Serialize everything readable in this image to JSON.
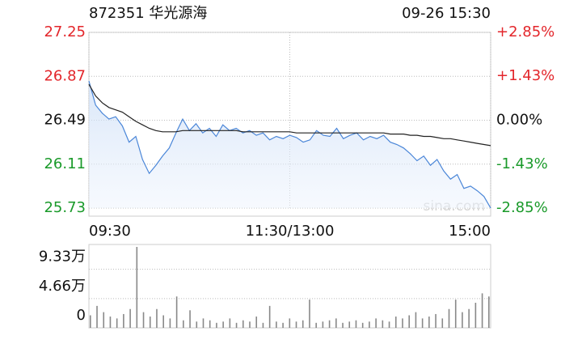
{
  "header": {
    "title": "872351 华光源海",
    "datetime": "09-26 15:30"
  },
  "chart_data": [
    {
      "type": "line",
      "watermark": "sina.com",
      "x": [
        0,
        4,
        8,
        12,
        16,
        20,
        24,
        28,
        32,
        36,
        40,
        44,
        48,
        52,
        56,
        60,
        64,
        68,
        72,
        76,
        80,
        84,
        88,
        92,
        96,
        100,
        104,
        108,
        112,
        116,
        120,
        124,
        128,
        132,
        136,
        140,
        144,
        148,
        152,
        156,
        160,
        164,
        168,
        172,
        176,
        180,
        184,
        188,
        192,
        196,
        200,
        204,
        208,
        212,
        216,
        220,
        224,
        228,
        232,
        236,
        240
      ],
      "xlim": [
        0,
        240
      ],
      "xticks": [
        {
          "value": 0,
          "label": "09:30"
        },
        {
          "value": 120,
          "label": "11:30/13:00"
        },
        {
          "value": 240,
          "label": "15:00"
        }
      ],
      "ylim": [
        25.73,
        27.25
      ],
      "yticks": [
        27.25,
        26.87,
        26.49,
        26.11,
        25.73
      ],
      "y2lim": [
        -2.85,
        2.85
      ],
      "y2ticks": [
        {
          "value": 2.85,
          "label": "+2.85%"
        },
        {
          "value": 1.43,
          "label": "+1.43%"
        },
        {
          "value": 0,
          "label": "0.00%"
        },
        {
          "value": -1.43,
          "label": "-1.43%"
        },
        {
          "value": -2.85,
          "label": "-2.85%"
        }
      ],
      "grid": true,
      "series": [
        {
          "color": "#4a86d8",
          "values": [
            26.83,
            26.62,
            26.55,
            26.5,
            26.52,
            26.44,
            26.3,
            26.35,
            26.15,
            26.03,
            26.1,
            26.18,
            26.25,
            26.38,
            26.5,
            26.4,
            26.46,
            26.38,
            26.42,
            26.35,
            26.45,
            26.4,
            26.42,
            26.38,
            26.4,
            26.36,
            26.38,
            26.32,
            26.35,
            26.33,
            26.36,
            26.34,
            26.3,
            26.32,
            26.4,
            26.36,
            26.35,
            26.42,
            26.33,
            26.36,
            26.38,
            26.32,
            26.35,
            26.33,
            26.36,
            26.3,
            26.28,
            26.25,
            26.2,
            26.14,
            26.18,
            26.1,
            26.15,
            26.05,
            25.98,
            26.02,
            25.9,
            25.92,
            25.88,
            25.83,
            25.73
          ]
        },
        {
          "color": "#222222",
          "values": [
            26.8,
            26.7,
            26.64,
            26.6,
            26.58,
            26.56,
            26.52,
            26.48,
            26.45,
            26.42,
            26.4,
            26.39,
            26.39,
            26.39,
            26.4,
            26.4,
            26.4,
            26.4,
            26.4,
            26.4,
            26.4,
            26.4,
            26.4,
            26.39,
            26.39,
            26.39,
            26.39,
            26.39,
            26.39,
            26.39,
            26.39,
            26.38,
            26.38,
            26.38,
            26.38,
            26.38,
            26.38,
            26.38,
            26.38,
            26.38,
            26.38,
            26.38,
            26.38,
            26.38,
            26.38,
            26.37,
            26.37,
            26.37,
            26.36,
            26.36,
            26.35,
            26.35,
            26.34,
            26.33,
            26.33,
            26.32,
            26.31,
            26.3,
            26.29,
            26.28,
            26.27
          ]
        }
      ]
    },
    {
      "type": "bar",
      "color": "#888888",
      "x": [
        0,
        4,
        8,
        12,
        16,
        20,
        24,
        28,
        32,
        36,
        40,
        44,
        48,
        52,
        56,
        60,
        64,
        68,
        72,
        76,
        80,
        84,
        88,
        92,
        96,
        100,
        104,
        108,
        112,
        116,
        120,
        124,
        128,
        132,
        136,
        140,
        144,
        148,
        152,
        156,
        160,
        164,
        168,
        172,
        176,
        180,
        184,
        188,
        192,
        196,
        200,
        204,
        208,
        212,
        216,
        220,
        224,
        228,
        232,
        236,
        240
      ],
      "xlim": [
        0,
        240
      ],
      "ylim": [
        0,
        12.9
      ],
      "yticks": [
        {
          "value": 9.33,
          "label": "9.33万"
        },
        {
          "value": 4.66,
          "label": "4.66万"
        },
        0
      ],
      "grid": true,
      "values": [
        2.0,
        3.5,
        2.5,
        1.8,
        1.5,
        2.2,
        3.0,
        12.9,
        2.5,
        1.8,
        3.0,
        2.0,
        1.5,
        5.0,
        1.2,
        2.8,
        1.0,
        1.5,
        1.2,
        0.8,
        1.0,
        1.5,
        0.8,
        1.2,
        1.0,
        1.8,
        0.8,
        3.5,
        1.0,
        0.8,
        1.5,
        1.0,
        1.2,
        4.5,
        0.8,
        1.0,
        1.2,
        1.5,
        0.8,
        1.0,
        1.2,
        0.8,
        1.0,
        1.5,
        1.2,
        1.0,
        1.8,
        1.5,
        2.0,
        2.5,
        1.5,
        1.8,
        2.2,
        1.5,
        3.0,
        4.5,
        2.5,
        3.0,
        4.0,
        5.5,
        5.0
      ]
    }
  ]
}
